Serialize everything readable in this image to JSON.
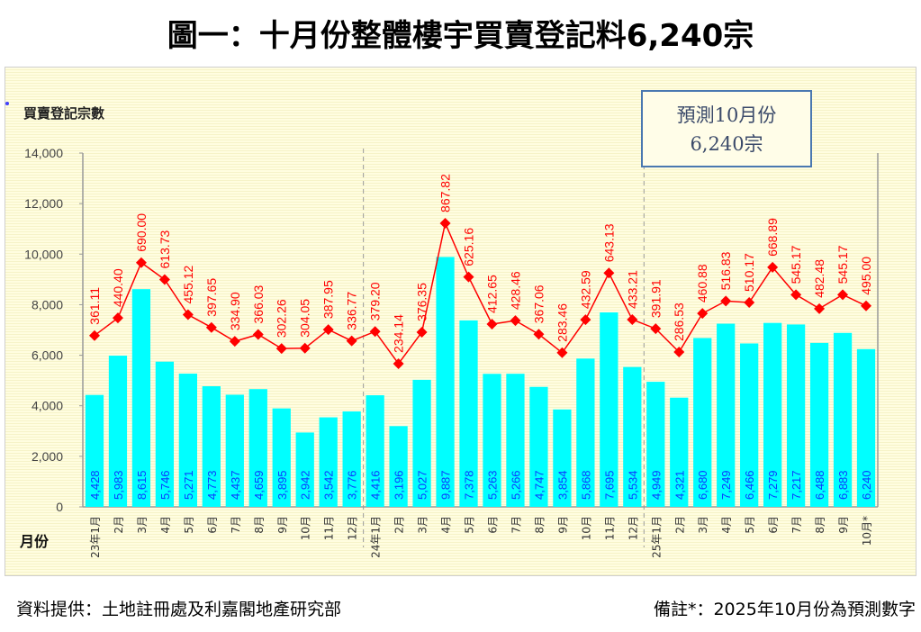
{
  "title": "圖一：十月份整體樓宇買賣登記料6,240宗",
  "footer": {
    "source": "資料提供：土地註冊處及利嘉閣地產研究部",
    "note": "備註*：2025年10月份為預測數字"
  },
  "callout": {
    "line1": "預測10月份",
    "line2": "6,240宗"
  },
  "chart_data": {
    "type": "bar",
    "title": "",
    "ylabel": "買賣登記宗數",
    "xlabel": "月份",
    "ylim": [
      0,
      14000
    ],
    "yticks": [
      "0",
      "2,000",
      "4,000",
      "6,000",
      "8,000",
      "10,000",
      "12,000",
      "14,000"
    ],
    "ytick_values": [
      0,
      2000,
      4000,
      6000,
      8000,
      10000,
      12000,
      14000
    ],
    "grid": false,
    "year_separators_after_index": [
      11,
      23
    ],
    "categories": [
      "23年1月",
      "2月",
      "3月",
      "4月",
      "5月",
      "6月",
      "7月",
      "8月",
      "9月",
      "10月",
      "11月",
      "12月",
      "24年1月",
      "2月",
      "3月",
      "4月",
      "5月",
      "6月",
      "7月",
      "8月",
      "9月",
      "10月",
      "11月",
      "12月",
      "25年1月",
      "2月",
      "3月",
      "4月",
      "5月",
      "6月",
      "7月",
      "8月",
      "9月",
      "10月*"
    ],
    "series": [
      {
        "name": "買賣登記宗數",
        "type": "bar",
        "color": "#00ffff",
        "label_color": "#0a3cff",
        "values": [
          4428,
          5983,
          8615,
          5746,
          5271,
          4773,
          4437,
          4659,
          3895,
          2942,
          3542,
          3776,
          4416,
          3196,
          5027,
          9887,
          7378,
          5263,
          5266,
          4747,
          3854,
          5868,
          7695,
          5534,
          4949,
          4321,
          6680,
          7249,
          6466,
          7279,
          7217,
          6488,
          6883,
          6240
        ],
        "labels": [
          "4,428",
          "5,983",
          "8,615",
          "5,746",
          "5,271",
          "4,773",
          "4,437",
          "4,659",
          "3,895",
          "2,942",
          "3,542",
          "3,776",
          "4,416",
          "3,196",
          "5,027",
          "9,887",
          "7,378",
          "5,263",
          "5,266",
          "4,747",
          "3,854",
          "5,868",
          "7,695",
          "5,534",
          "4,949",
          "4,321",
          "6,680",
          "7,249",
          "6,466",
          "7,279",
          "7,217",
          "6,488",
          "6,883",
          "6,240"
        ]
      },
      {
        "name": "line-series",
        "type": "line",
        "color": "#ff0000",
        "values": [
          361.11,
          440.4,
          690.0,
          613.73,
          455.12,
          397.65,
          334.9,
          366.03,
          302.26,
          304.05,
          387.95,
          336.77,
          379.2,
          234.14,
          376.35,
          867.82,
          625.16,
          412.65,
          428.46,
          367.06,
          283.46,
          432.59,
          643.13,
          433.21,
          391.91,
          286.53,
          460.88,
          516.83,
          510.17,
          668.89,
          545.17,
          482.48,
          545.17,
          495.0
        ],
        "labels": [
          "361.11",
          "440.40",
          "690.00",
          "613.73",
          "455.12",
          "397.65",
          "334.90",
          "366.03",
          "302.26",
          "304.05",
          "387.95",
          "336.77",
          "379.20",
          "234.14",
          "376.35",
          "867.82",
          "625.16",
          "412.65",
          "428.46",
          "367.06",
          "283.46",
          "432.59",
          "643.13",
          "433.21",
          "391.91",
          "286.53",
          "460.88",
          "516.83",
          "510.17",
          "668.89",
          "545.17",
          "482.48",
          "545.17",
          "495.00"
        ]
      }
    ]
  }
}
